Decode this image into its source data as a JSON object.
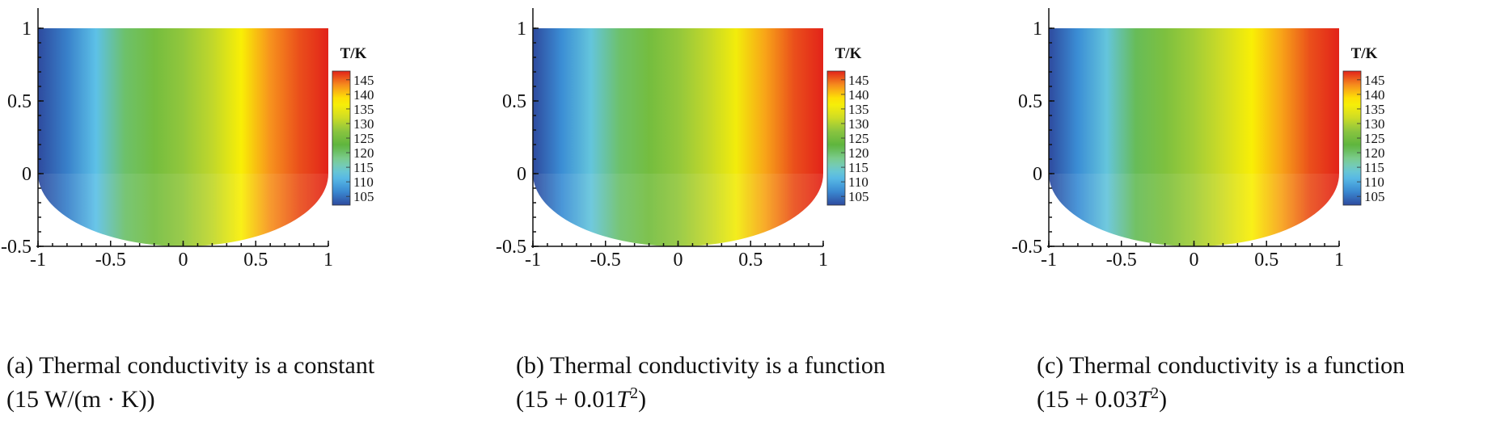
{
  "chart_data": [
    {
      "type": "heatmap",
      "panel_id": "a",
      "colorbar_title": "T/K",
      "colorbar_ticks": [
        145,
        140,
        135,
        130,
        125,
        120,
        115,
        110,
        105
      ],
      "t_min": 102,
      "t_max": 148,
      "xlim": [
        -1,
        1
      ],
      "ylim": [
        -0.5,
        1
      ],
      "x_ticks": [
        "-1",
        "-0.5",
        "0",
        "0.5",
        "1"
      ],
      "y_ticks": [
        "-0.5",
        "0",
        "0.5",
        "1"
      ],
      "domain_shape": "rectangle y in [0,1] over half-ellipse y in [-0.5,0]",
      "temperature_profile": {
        "x": [
          -1,
          -0.8,
          -0.6,
          -0.4,
          -0.2,
          0,
          0.2,
          0.4,
          0.6,
          0.8,
          1
        ],
        "T": [
          102,
          106,
          112,
          120,
          125,
          128,
          131,
          137,
          143,
          146,
          148
        ]
      },
      "caption_label": "(a)",
      "caption_line1": "Thermal conductivity is a constant",
      "caption_line2": "(15 W/(m · K))"
    },
    {
      "type": "heatmap",
      "panel_id": "b",
      "colorbar_title": "T/K",
      "colorbar_ticks": [
        145,
        140,
        135,
        130,
        125,
        120,
        115,
        110,
        105
      ],
      "t_min": 102,
      "t_max": 148,
      "xlim": [
        -1,
        1
      ],
      "ylim": [
        -0.5,
        1
      ],
      "x_ticks": [
        "-1",
        "-0.5",
        "0",
        "0.5",
        "1"
      ],
      "y_ticks": [
        "-0.5",
        "0",
        "0.5",
        "1"
      ],
      "domain_shape": "rectangle y in [0,1] over half-ellipse y in [-0.5,0]",
      "temperature_profile": {
        "x": [
          -1,
          -0.8,
          -0.6,
          -0.4,
          -0.2,
          0,
          0.2,
          0.4,
          0.6,
          0.8,
          1
        ],
        "T": [
          102,
          107,
          113,
          120,
          125,
          128,
          131,
          136,
          142,
          146,
          148
        ]
      },
      "caption_label": "(b)",
      "caption_line1": "Thermal conductivity is a function",
      "caption_line2_prefix": "(15 + 0.01",
      "caption_line2_var": "T",
      "caption_line2_exp": "2",
      "caption_line2_suffix": ")"
    },
    {
      "type": "heatmap",
      "panel_id": "c",
      "colorbar_title": "T/K",
      "colorbar_ticks": [
        145,
        140,
        135,
        130,
        125,
        120,
        115,
        110,
        105
      ],
      "t_min": 102,
      "t_max": 148,
      "xlim": [
        -1,
        1
      ],
      "ylim": [
        -0.5,
        1
      ],
      "x_ticks": [
        "-1",
        "-0.5",
        "0",
        "0.5",
        "1"
      ],
      "y_ticks": [
        "-0.5",
        "0",
        "0.5",
        "1"
      ],
      "domain_shape": "rectangle y in [0,1] over half-ellipse y in [-0.5,0]",
      "temperature_profile": {
        "x": [
          -1,
          -0.8,
          -0.6,
          -0.4,
          -0.2,
          0,
          0.2,
          0.4,
          0.6,
          0.8,
          1
        ],
        "T": [
          102,
          107,
          113,
          121,
          126,
          129,
          132,
          137,
          142,
          146,
          148
        ]
      },
      "caption_label": "(c)",
      "caption_line1": "Thermal conductivity is a function",
      "caption_line2_prefix": "(15 + 0.03",
      "caption_line2_var": "T",
      "caption_line2_exp": "2",
      "caption_line2_suffix": ")"
    }
  ],
  "colormap": [
    "#2e4a9e",
    "#3b8fd6",
    "#5fc3e8",
    "#7fcf9a",
    "#5db43e",
    "#8bc53f",
    "#d9e021",
    "#fff200",
    "#f7941d",
    "#e2231a"
  ]
}
